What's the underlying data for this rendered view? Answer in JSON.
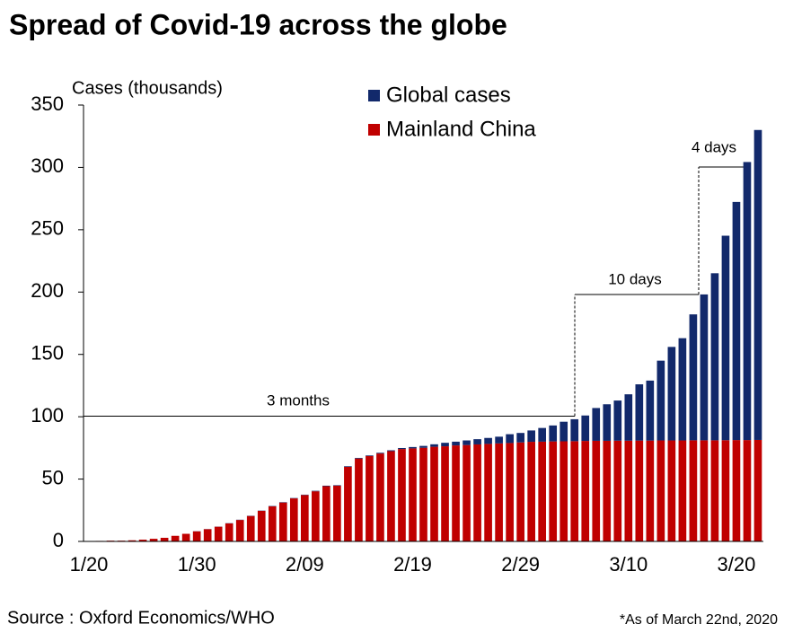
{
  "chart_data": {
    "type": "bar",
    "stacked": true,
    "title": "Spread of Covid-19 across the globe",
    "y_label": "Cases (thousands)",
    "categories": [
      "1/20",
      null,
      null,
      null,
      null,
      null,
      null,
      null,
      null,
      null,
      "1/30",
      null,
      null,
      null,
      null,
      null,
      null,
      null,
      null,
      null,
      "2/09",
      null,
      null,
      null,
      null,
      null,
      null,
      null,
      null,
      null,
      "2/19",
      null,
      null,
      null,
      null,
      null,
      null,
      null,
      null,
      null,
      "2/29",
      null,
      null,
      null,
      null,
      null,
      null,
      null,
      null,
      null,
      "3/10",
      null,
      null,
      null,
      null,
      null,
      null,
      null,
      null,
      null,
      "3/20",
      null,
      null
    ],
    "series": [
      {
        "name": "Global cases",
        "color": "#12296b",
        "values": [
          0,
          0,
          0,
          0,
          0,
          0,
          0,
          0,
          0,
          0,
          0.1,
          0.1,
          0.1,
          0.2,
          0.2,
          0.2,
          0.2,
          0.3,
          0.3,
          0.3,
          0.3,
          0.4,
          0.4,
          0.4,
          0.5,
          0.5,
          0.5,
          0.6,
          0.7,
          0.8,
          1.1,
          1.5,
          2.0,
          2.8,
          3.0,
          3.7,
          4.2,
          4.8,
          5.4,
          7.1,
          7.6,
          9.1,
          11.0,
          12.8,
          15.7,
          17.6,
          20.4,
          26.3,
          29.3,
          32.2,
          37.2,
          45.1,
          48.1,
          64.0,
          75.0,
          82.0,
          101,
          117,
          134,
          164,
          191,
          223,
          248.6
        ]
      },
      {
        "name": "Mainland China",
        "color": "#c00000",
        "values": [
          0.3,
          0.4,
          0.6,
          0.6,
          0.9,
          1.4,
          2.1,
          2.9,
          4.5,
          6.1,
          8.1,
          9.8,
          11.8,
          14.4,
          17.2,
          20.4,
          24.5,
          28.1,
          31.2,
          34.5,
          37.2,
          40.2,
          44.3,
          44.7,
          59.8,
          66.5,
          68.5,
          70.5,
          72.4,
          74.1,
          74.6,
          75.1,
          75.9,
          76.3,
          77.0,
          77.3,
          77.8,
          78.2,
          78.6,
          78.9,
          79.4,
          79.9,
          80.0,
          80.2,
          80.3,
          80.4,
          80.6,
          80.7,
          80.7,
          80.8,
          80.8,
          80.9,
          80.9,
          81.0,
          81.0,
          81.0,
          81.1,
          81.1,
          81.1,
          81.2,
          81.3,
          81.3,
          81.4
        ]
      }
    ],
    "ylim": [
      0,
      350
    ],
    "yticks": [
      0,
      50,
      100,
      150,
      200,
      250,
      300,
      350
    ],
    "annotations": [
      "3 months",
      "10 days",
      "4 days"
    ],
    "source": "Source : Oxford Economics/WHO",
    "note": "*As of March 22nd, 2020"
  }
}
